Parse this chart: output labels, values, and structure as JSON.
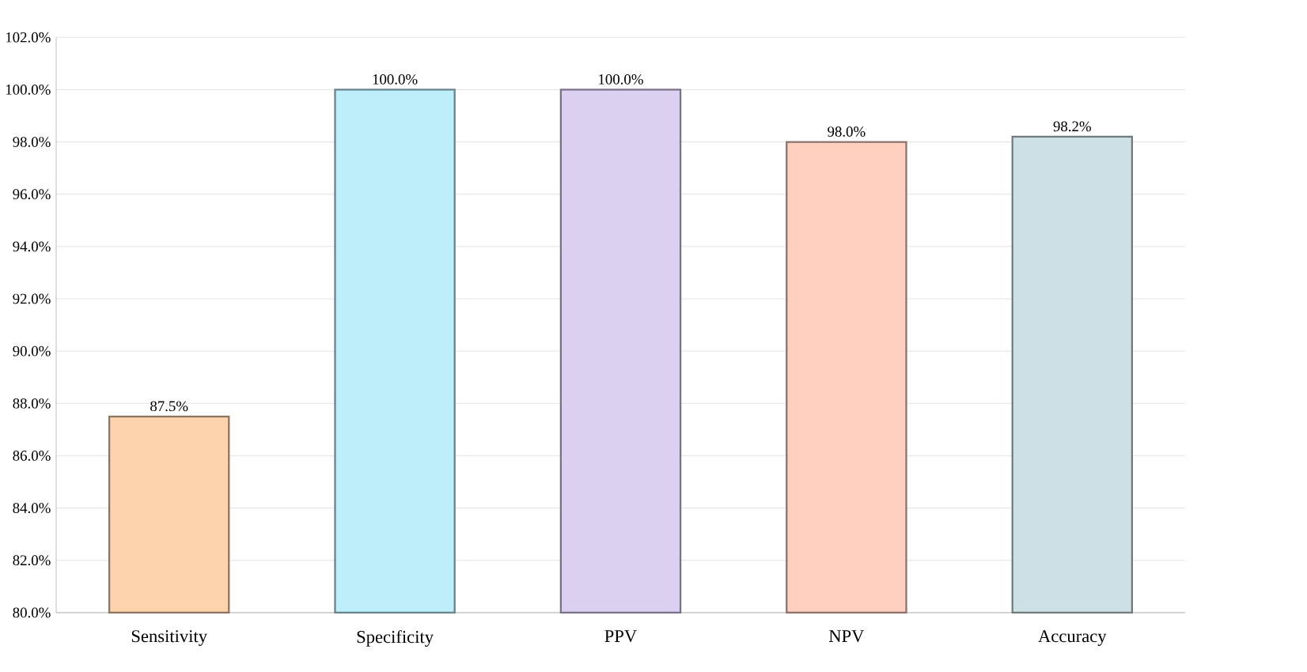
{
  "chart_data": {
    "type": "bar",
    "categories": [
      "Sensitivity",
      "Specificity",
      "PPV",
      "NPV",
      "Accuracy"
    ],
    "values": [
      87.5,
      100.0,
      100.0,
      98.0,
      98.2
    ],
    "value_labels": [
      "87.5%",
      "100.0%",
      "100.0%",
      "98.0%",
      "98.2%"
    ],
    "colors": [
      "#fdd3ae",
      "#bdeefa",
      "#dcd0f0",
      "#ffd0c0",
      "#cde0e5"
    ],
    "ylim": [
      80,
      102
    ],
    "yticks": [
      {
        "value": 80,
        "label": "80.0%"
      },
      {
        "value": 82,
        "label": "82.0%"
      },
      {
        "value": 84,
        "label": "84.0%"
      },
      {
        "value": 86,
        "label": "86.0%"
      },
      {
        "value": 88,
        "label": "88.0%"
      },
      {
        "value": 90,
        "label": "90.0%"
      },
      {
        "value": 92,
        "label": "92.0%"
      },
      {
        "value": 94,
        "label": "94.0%"
      },
      {
        "value": 96,
        "label": "96.0%"
      },
      {
        "value": 98,
        "label": "98.0%"
      },
      {
        "value": 100,
        "label": "100.0%"
      },
      {
        "value": 102,
        "label": "102.0%"
      }
    ],
    "grid": "y"
  }
}
